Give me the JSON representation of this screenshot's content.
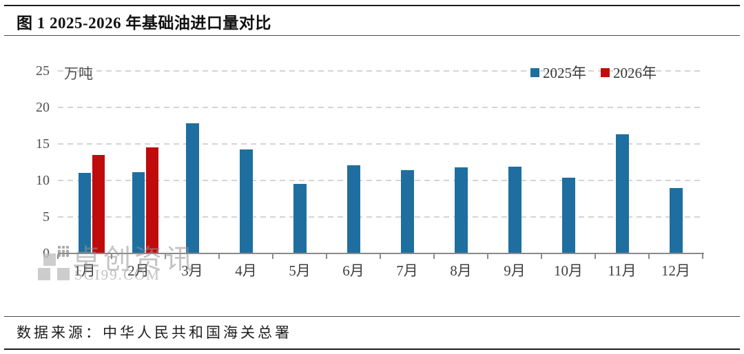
{
  "figure": {
    "title": "图 1 2025-2026 年基础油进口量对比",
    "source": "数据来源：中华人民共和国海关总署",
    "watermark": {
      "brand": "卓创资讯",
      "domain": "SCI99.COM"
    }
  },
  "chart_data": {
    "type": "bar",
    "title": "图 1 2025-2026 年基础油进口量对比",
    "unit_label": "万吨",
    "ylabel": "万吨",
    "categories": [
      "1月",
      "2月",
      "3月",
      "4月",
      "5月",
      "6月",
      "7月",
      "8月",
      "9月",
      "10月",
      "11月",
      "12月"
    ],
    "series": [
      {
        "name": "2025年",
        "color": "#1E6F9F",
        "values": [
          11.0,
          11.1,
          17.8,
          14.2,
          9.5,
          12.1,
          11.4,
          11.8,
          11.9,
          10.4,
          16.3,
          9.0
        ]
      },
      {
        "name": "2026年",
        "color": "#C00B0C",
        "values": [
          13.5,
          14.5,
          null,
          null,
          null,
          null,
          null,
          null,
          null,
          null,
          null,
          null
        ]
      }
    ],
    "ylim": [
      0,
      25
    ],
    "yticks": [
      0,
      5,
      10,
      15,
      20,
      25
    ],
    "grid": "horizontal-dashed",
    "legend_position": "top-right",
    "source": "数据来源：中华人民共和国海关总署"
  }
}
